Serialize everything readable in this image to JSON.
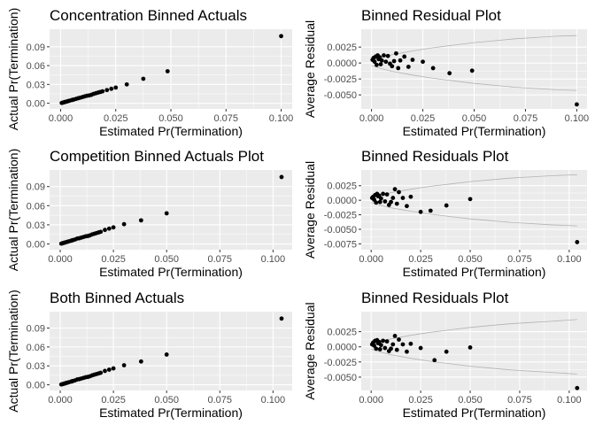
{
  "chart_data": [
    {
      "type": "scatter",
      "title": "Concentration Binned Actuals",
      "xlabel": "Estimated Pr(Termination)",
      "ylabel": "Actual Pr(Termination)",
      "xlim": [
        -0.005,
        0.105
      ],
      "ylim": [
        -0.009,
        0.118
      ],
      "xticks": [
        0,
        0.025,
        0.05,
        0.075,
        0.1
      ],
      "xtick_labels": [
        "0.000",
        "0.025",
        "0.050",
        "0.075",
        "0.100"
      ],
      "yticks": [
        0,
        0.03,
        0.06,
        0.09
      ],
      "ytick_labels": [
        "0.00",
        "0.03",
        "0.06",
        "0.09"
      ],
      "grid": true,
      "points": {
        "x": [
          0.0005,
          0.001,
          0.0015,
          0.002,
          0.0025,
          0.003,
          0.0035,
          0.004,
          0.005,
          0.0055,
          0.006,
          0.007,
          0.008,
          0.009,
          0.01,
          0.011,
          0.012,
          0.013,
          0.014,
          0.015,
          0.016,
          0.017,
          0.018,
          0.019,
          0.021,
          0.023,
          0.025,
          0.03,
          0.0375,
          0.0485,
          0.1
        ],
        "y": [
          0.0005,
          0.001,
          0.0015,
          0.002,
          0.0025,
          0.003,
          0.0035,
          0.004,
          0.005,
          0.0055,
          0.006,
          0.007,
          0.008,
          0.009,
          0.01,
          0.011,
          0.012,
          0.0125,
          0.0135,
          0.015,
          0.016,
          0.017,
          0.018,
          0.019,
          0.021,
          0.023,
          0.025,
          0.03,
          0.039,
          0.051,
          0.107
        ]
      }
    },
    {
      "type": "scatter",
      "title": "Binned Residual Plot",
      "xlabel": "Estimated Pr(Termination)",
      "ylabel": "Average Residual",
      "xlim": [
        -0.005,
        0.105
      ],
      "ylim": [
        -0.0072,
        0.0053
      ],
      "xticks": [
        0,
        0.025,
        0.05,
        0.075,
        0.1
      ],
      "xtick_labels": [
        "0.000",
        "0.025",
        "0.050",
        "0.075",
        "0.100"
      ],
      "yticks": [
        0.0025,
        0,
        -0.0025,
        -0.005
      ],
      "ytick_labels": [
        "0.0025",
        "0.0000",
        "-0.0025",
        "-0.0050"
      ],
      "grid": true,
      "points": {
        "x": [
          0.0005,
          0.001,
          0.0015,
          0.002,
          0.0025,
          0.003,
          0.0035,
          0.004,
          0.0045,
          0.005,
          0.006,
          0.007,
          0.008,
          0.009,
          0.01,
          0.011,
          0.012,
          0.013,
          0.014,
          0.016,
          0.018,
          0.02,
          0.025,
          0.03,
          0.038,
          0.049,
          0.1
        ],
        "y": [
          0.0005,
          0.0008,
          0.0002,
          0.001,
          -0.0003,
          0.0012,
          0.0006,
          0.0009,
          -0.0002,
          0.0004,
          0.0012,
          0.0002,
          0.0011,
          -0.0001,
          -0.0005,
          0.0003,
          0.0015,
          -0.0008,
          0.0004,
          0.001,
          -0.0006,
          0.0005,
          0.0002,
          -0.0008,
          -0.0016,
          -0.0012,
          -0.0065
        ]
      },
      "bands": {
        "x": [
          0,
          0.005,
          0.01,
          0.02,
          0.03,
          0.04,
          0.05,
          0.06,
          0.07,
          0.08,
          0.09,
          0.1
        ],
        "upper": [
          0.0004,
          0.0009,
          0.0013,
          0.0019,
          0.0024,
          0.0028,
          0.0032,
          0.0035,
          0.0038,
          0.004,
          0.0042,
          0.0043
        ],
        "lower": [
          -0.0004,
          -0.0009,
          -0.0013,
          -0.0019,
          -0.0024,
          -0.0028,
          -0.0032,
          -0.0035,
          -0.0038,
          -0.004,
          -0.0042,
          -0.0043
        ]
      }
    },
    {
      "type": "scatter",
      "title": "Competition Binned Actuals Plot",
      "xlabel": "Estimated Pr(Termination)",
      "ylabel": "Actual Pr(Termination)",
      "xlim": [
        -0.005,
        0.109
      ],
      "ylim": [
        -0.009,
        0.116
      ],
      "xticks": [
        0,
        0.025,
        0.05,
        0.075,
        0.1
      ],
      "xtick_labels": [
        "0.000",
        "0.025",
        "0.050",
        "0.075",
        "0.100"
      ],
      "yticks": [
        0,
        0.03,
        0.06,
        0.09
      ],
      "ytick_labels": [
        "0.00",
        "0.03",
        "0.06",
        "0.09"
      ],
      "grid": true,
      "points": {
        "x": [
          0.0005,
          0.001,
          0.0015,
          0.002,
          0.0025,
          0.003,
          0.0035,
          0.004,
          0.005,
          0.0055,
          0.006,
          0.007,
          0.008,
          0.009,
          0.01,
          0.011,
          0.012,
          0.013,
          0.014,
          0.015,
          0.016,
          0.017,
          0.018,
          0.019,
          0.021,
          0.023,
          0.025,
          0.03,
          0.038,
          0.05,
          0.104
        ],
        "y": [
          0.0005,
          0.001,
          0.0015,
          0.002,
          0.0025,
          0.003,
          0.0035,
          0.004,
          0.005,
          0.0055,
          0.006,
          0.007,
          0.0085,
          0.009,
          0.01,
          0.011,
          0.012,
          0.0125,
          0.0135,
          0.015,
          0.016,
          0.017,
          0.018,
          0.019,
          0.022,
          0.024,
          0.026,
          0.031,
          0.037,
          0.048,
          0.105
        ]
      }
    },
    {
      "type": "scatter",
      "title": "Binned Residuals Plot",
      "xlabel": "Estimated Pr(Termination)",
      "ylabel": "Average Residual",
      "xlim": [
        -0.005,
        0.109
      ],
      "ylim": [
        -0.0085,
        0.0052
      ],
      "xticks": [
        0,
        0.025,
        0.05,
        0.075,
        0.1
      ],
      "xtick_labels": [
        "0.000",
        "0.025",
        "0.050",
        "0.075",
        "0.100"
      ],
      "yticks": [
        0.0025,
        0,
        -0.0025,
        -0.005,
        -0.0075
      ],
      "ytick_labels": [
        "0.0025",
        "0.0000",
        "-0.0025",
        "-0.0050",
        "-0.0075"
      ],
      "grid": true,
      "points": {
        "x": [
          0.0005,
          0.001,
          0.0015,
          0.002,
          0.0025,
          0.003,
          0.0035,
          0.004,
          0.0045,
          0.005,
          0.006,
          0.007,
          0.008,
          0.009,
          0.01,
          0.011,
          0.012,
          0.013,
          0.014,
          0.016,
          0.018,
          0.02,
          0.025,
          0.03,
          0.038,
          0.05,
          0.104
        ],
        "y": [
          0.0004,
          0.0006,
          0.0001,
          0.0009,
          -0.0004,
          0.0011,
          0.0007,
          0.0008,
          -0.0003,
          0.0003,
          0.0011,
          -0.0002,
          0.001,
          -0.0008,
          -0.0003,
          0.0004,
          0.0019,
          -0.0006,
          0.0014,
          0.0004,
          -0.001,
          0.0006,
          -0.002,
          -0.0018,
          -0.0009,
          0.0002,
          -0.0072
        ]
      },
      "bands": {
        "x": [
          0,
          0.005,
          0.01,
          0.02,
          0.03,
          0.04,
          0.05,
          0.06,
          0.07,
          0.08,
          0.09,
          0.104
        ],
        "upper": [
          0.0004,
          0.0009,
          0.0013,
          0.0019,
          0.0024,
          0.0028,
          0.0032,
          0.0035,
          0.0038,
          0.004,
          0.0042,
          0.0044
        ],
        "lower": [
          -0.0004,
          -0.0009,
          -0.0013,
          -0.0019,
          -0.0024,
          -0.0028,
          -0.0032,
          -0.0035,
          -0.0038,
          -0.004,
          -0.0042,
          -0.0044
        ]
      }
    },
    {
      "type": "scatter",
      "title": "Both Binned Actuals",
      "xlabel": "Estimated Pr(Termination)",
      "ylabel": "Actual Pr(Termination)",
      "xlim": [
        -0.005,
        0.109
      ],
      "ylim": [
        -0.009,
        0.116
      ],
      "xticks": [
        0,
        0.025,
        0.05,
        0.075,
        0.1
      ],
      "xtick_labels": [
        "0.000",
        "0.025",
        "0.050",
        "0.075",
        "0.100"
      ],
      "yticks": [
        0,
        0.03,
        0.06,
        0.09
      ],
      "ytick_labels": [
        "0.00",
        "0.03",
        "0.06",
        "0.09"
      ],
      "grid": true,
      "points": {
        "x": [
          0.0005,
          0.001,
          0.0015,
          0.002,
          0.0025,
          0.003,
          0.0035,
          0.004,
          0.005,
          0.0055,
          0.006,
          0.007,
          0.008,
          0.009,
          0.01,
          0.011,
          0.012,
          0.013,
          0.014,
          0.015,
          0.016,
          0.017,
          0.018,
          0.019,
          0.021,
          0.023,
          0.025,
          0.03,
          0.038,
          0.05,
          0.104
        ],
        "y": [
          0.0005,
          0.001,
          0.0015,
          0.002,
          0.0025,
          0.003,
          0.0035,
          0.004,
          0.005,
          0.0055,
          0.006,
          0.007,
          0.0085,
          0.009,
          0.01,
          0.011,
          0.012,
          0.0125,
          0.0135,
          0.015,
          0.016,
          0.017,
          0.018,
          0.019,
          0.022,
          0.024,
          0.026,
          0.031,
          0.037,
          0.048,
          0.105
        ]
      }
    },
    {
      "type": "scatter",
      "title": "Binned Residuals Plot",
      "xlabel": "Estimated Pr(Termination)",
      "ylabel": "Average Residual",
      "xlim": [
        -0.005,
        0.109
      ],
      "ylim": [
        -0.0072,
        0.0058
      ],
      "xticks": [
        0,
        0.025,
        0.05,
        0.075,
        0.1
      ],
      "xtick_labels": [
        "0.000",
        "0.025",
        "0.050",
        "0.075",
        "0.100"
      ],
      "yticks": [
        0.0025,
        0,
        -0.0025,
        -0.005
      ],
      "ytick_labels": [
        "0.0025",
        "0.0000",
        "-0.0025",
        "-0.0050"
      ],
      "grid": true,
      "points": {
        "x": [
          0.0005,
          0.001,
          0.0015,
          0.002,
          0.0025,
          0.003,
          0.0035,
          0.004,
          0.0045,
          0.005,
          0.006,
          0.007,
          0.008,
          0.009,
          0.01,
          0.011,
          0.012,
          0.013,
          0.014,
          0.016,
          0.018,
          0.02,
          0.025,
          0.032,
          0.038,
          0.05,
          0.104
        ],
        "y": [
          0.0004,
          0.0007,
          0.0002,
          0.001,
          -0.0003,
          0.0011,
          0.0006,
          0.0008,
          -0.0004,
          0.0003,
          0.001,
          -0.0002,
          0.0009,
          -0.0007,
          -0.0003,
          0.0004,
          0.0018,
          -0.0005,
          0.0012,
          0.0004,
          -0.0008,
          0.0005,
          -0.0002,
          -0.0022,
          -0.0008,
          -0.0001,
          -0.0068
        ]
      },
      "bands": {
        "x": [
          0,
          0.005,
          0.01,
          0.02,
          0.03,
          0.04,
          0.05,
          0.06,
          0.07,
          0.08,
          0.09,
          0.104
        ],
        "upper": [
          0.0004,
          0.0009,
          0.0013,
          0.0019,
          0.0024,
          0.0028,
          0.0032,
          0.0035,
          0.0038,
          0.004,
          0.0042,
          0.0045
        ],
        "lower": [
          -0.0004,
          -0.0009,
          -0.0013,
          -0.0019,
          -0.0024,
          -0.0028,
          -0.0032,
          -0.0035,
          -0.0038,
          -0.004,
          -0.0042,
          -0.0045
        ]
      }
    }
  ]
}
